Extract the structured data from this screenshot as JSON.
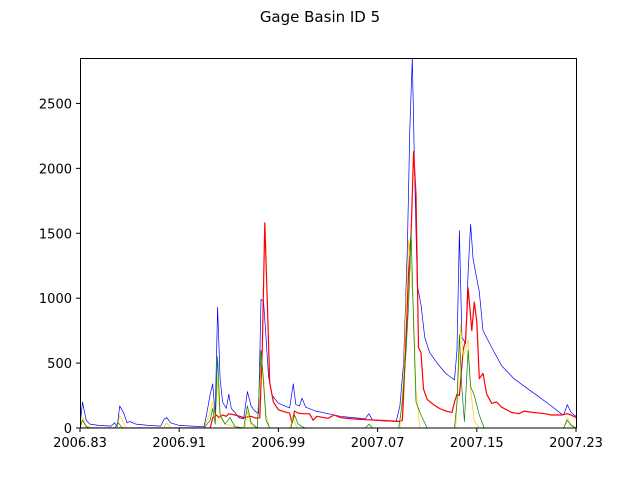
{
  "chart_data": {
    "type": "line",
    "title": "Gage Basin ID 5",
    "xlabel": "",
    "ylabel": "",
    "xlim": [
      2006.83,
      2007.23
    ],
    "ylim": [
      0,
      2850
    ],
    "xticks": [
      2006.83,
      2006.91,
      2006.99,
      2007.07,
      2007.15,
      2007.23
    ],
    "xtick_labels": [
      "2006.83",
      "2006.91",
      "2006.99",
      "2007.07",
      "2007.15",
      "2007.23"
    ],
    "yticks": [
      0,
      500,
      1000,
      1500,
      2000,
      2500
    ],
    "ytick_labels": [
      "0",
      "500",
      "1000",
      "1500",
      "2000",
      "2500"
    ],
    "grid": false,
    "legend": "none",
    "series": [
      {
        "color": "#0000ff",
        "width": 0.7,
        "points": [
          [
            2006.83,
            20
          ],
          [
            2006.832,
            200
          ],
          [
            2006.835,
            60
          ],
          [
            2006.838,
            30
          ],
          [
            2006.845,
            20
          ],
          [
            2006.855,
            15
          ],
          [
            2006.858,
            40
          ],
          [
            2006.86,
            10
          ],
          [
            2006.862,
            170
          ],
          [
            2006.865,
            120
          ],
          [
            2006.868,
            40
          ],
          [
            2006.87,
            50
          ],
          [
            2006.875,
            30
          ],
          [
            2006.885,
            20
          ],
          [
            2006.895,
            15
          ],
          [
            2006.898,
            70
          ],
          [
            2006.9,
            80
          ],
          [
            2006.903,
            40
          ],
          [
            2006.91,
            20
          ],
          [
            2006.92,
            15
          ],
          [
            2006.93,
            10
          ],
          [
            2006.932,
            100
          ],
          [
            2006.935,
            260
          ],
          [
            2006.937,
            340
          ],
          [
            2006.939,
            100
          ],
          [
            2006.941,
            930
          ],
          [
            2006.943,
            380
          ],
          [
            2006.945,
            200
          ],
          [
            2006.948,
            150
          ],
          [
            2006.95,
            260
          ],
          [
            2006.952,
            150
          ],
          [
            2006.955,
            120
          ],
          [
            2006.958,
            80
          ],
          [
            2006.962,
            70
          ],
          [
            2006.965,
            280
          ],
          [
            2006.968,
            170
          ],
          [
            2006.971,
            130
          ],
          [
            2006.974,
            110
          ],
          [
            2006.976,
            990
          ],
          [
            2006.978,
            980
          ],
          [
            2006.98,
            700
          ],
          [
            2006.982,
            400
          ],
          [
            2006.985,
            250
          ],
          [
            2006.99,
            190
          ],
          [
            2006.995,
            170
          ],
          [
            2006.999,
            155
          ],
          [
            2007.002,
            340
          ],
          [
            2007.004,
            180
          ],
          [
            2007.007,
            170
          ],
          [
            2007.009,
            230
          ],
          [
            2007.012,
            160
          ],
          [
            2007.02,
            130
          ],
          [
            2007.03,
            110
          ],
          [
            2007.04,
            90
          ],
          [
            2007.05,
            80
          ],
          [
            2007.06,
            70
          ],
          [
            2007.063,
            110
          ],
          [
            2007.066,
            60
          ],
          [
            2007.075,
            55
          ],
          [
            2007.085,
            50
          ],
          [
            2007.088,
            170
          ],
          [
            2007.091,
            500
          ],
          [
            2007.094,
            1400
          ],
          [
            2007.096,
            2300
          ],
          [
            2007.098,
            2850
          ],
          [
            2007.1,
            1900
          ],
          [
            2007.102,
            1100
          ],
          [
            2007.105,
            950
          ],
          [
            2007.108,
            700
          ],
          [
            2007.112,
            580
          ],
          [
            2007.118,
            500
          ],
          [
            2007.125,
            420
          ],
          [
            2007.132,
            370
          ],
          [
            2007.134,
            600
          ],
          [
            2007.136,
            1520
          ],
          [
            2007.138,
            700
          ],
          [
            2007.141,
            650
          ],
          [
            2007.143,
            1200
          ],
          [
            2007.145,
            1570
          ],
          [
            2007.147,
            1300
          ],
          [
            2007.15,
            1150
          ],
          [
            2007.152,
            1050
          ],
          [
            2007.155,
            750
          ],
          [
            2007.162,
            620
          ],
          [
            2007.17,
            480
          ],
          [
            2007.18,
            380
          ],
          [
            2007.19,
            310
          ],
          [
            2007.2,
            240
          ],
          [
            2007.21,
            170
          ],
          [
            2007.218,
            110
          ],
          [
            2007.22,
            100
          ],
          [
            2007.223,
            180
          ],
          [
            2007.226,
            120
          ],
          [
            2007.23,
            90
          ]
        ]
      },
      {
        "color": "#ff0000",
        "width": 1.2,
        "points": [
          [
            2006.83,
            0
          ],
          [
            2006.935,
            0
          ],
          [
            2006.937,
            80
          ],
          [
            2006.94,
            100
          ],
          [
            2006.942,
            80
          ],
          [
            2006.945,
            100
          ],
          [
            2006.948,
            90
          ],
          [
            2006.95,
            110
          ],
          [
            2006.955,
            100
          ],
          [
            2006.962,
            80
          ],
          [
            2006.968,
            90
          ],
          [
            2006.972,
            75
          ],
          [
            2006.975,
            80
          ],
          [
            2006.977,
            620
          ],
          [
            2006.979,
            1580
          ],
          [
            2006.981,
            1000
          ],
          [
            2006.983,
            350
          ],
          [
            2006.986,
            200
          ],
          [
            2006.99,
            140
          ],
          [
            2006.995,
            125
          ],
          [
            2006.999,
            115
          ],
          [
            2007.001,
            40
          ],
          [
            2007.003,
            130
          ],
          [
            2007.006,
            115
          ],
          [
            2007.01,
            110
          ],
          [
            2007.015,
            110
          ],
          [
            2007.018,
            60
          ],
          [
            2007.021,
            90
          ],
          [
            2007.03,
            75
          ],
          [
            2007.035,
            100
          ],
          [
            2007.04,
            80
          ],
          [
            2007.05,
            70
          ],
          [
            2007.06,
            65
          ],
          [
            2007.07,
            60
          ],
          [
            2007.08,
            55
          ],
          [
            2007.088,
            50
          ],
          [
            2007.09,
            60
          ],
          [
            2007.093,
            700
          ],
          [
            2007.095,
            1200
          ],
          [
            2007.097,
            1500
          ],
          [
            2007.099,
            2130
          ],
          [
            2007.101,
            1800
          ],
          [
            2007.103,
            620
          ],
          [
            2007.105,
            580
          ],
          [
            2007.107,
            300
          ],
          [
            2007.11,
            220
          ],
          [
            2007.115,
            180
          ],
          [
            2007.12,
            150
          ],
          [
            2007.125,
            130
          ],
          [
            2007.13,
            120
          ],
          [
            2007.132,
            200
          ],
          [
            2007.134,
            260
          ],
          [
            2007.136,
            250
          ],
          [
            2007.139,
            600
          ],
          [
            2007.141,
            680
          ],
          [
            2007.143,
            1080
          ],
          [
            2007.146,
            750
          ],
          [
            2007.148,
            970
          ],
          [
            2007.15,
            820
          ],
          [
            2007.152,
            380
          ],
          [
            2007.155,
            420
          ],
          [
            2007.158,
            260
          ],
          [
            2007.162,
            190
          ],
          [
            2007.166,
            200
          ],
          [
            2007.17,
            160
          ],
          [
            2007.178,
            120
          ],
          [
            2007.184,
            110
          ],
          [
            2007.188,
            130
          ],
          [
            2007.195,
            120
          ],
          [
            2007.205,
            110
          ],
          [
            2007.21,
            100
          ],
          [
            2007.218,
            100
          ],
          [
            2007.223,
            110
          ],
          [
            2007.226,
            100
          ],
          [
            2007.23,
            80
          ]
        ]
      },
      {
        "color": "#ffcc00",
        "width": 0.7,
        "points": [
          [
            2006.83,
            0
          ],
          [
            2006.832,
            80
          ],
          [
            2006.835,
            20
          ],
          [
            2006.84,
            0
          ],
          [
            2006.86,
            0
          ],
          [
            2006.862,
            100
          ],
          [
            2006.864,
            60
          ],
          [
            2006.867,
            0
          ],
          [
            2006.897,
            0
          ],
          [
            2006.9,
            40
          ],
          [
            2006.903,
            0
          ],
          [
            2006.93,
            0
          ],
          [
            2006.935,
            120
          ],
          [
            2006.937,
            200
          ],
          [
            2006.939,
            60
          ],
          [
            2006.941,
            370
          ],
          [
            2006.943,
            80
          ],
          [
            2006.947,
            30
          ],
          [
            2006.955,
            10
          ],
          [
            2006.963,
            0
          ],
          [
            2006.965,
            130
          ],
          [
            2006.968,
            20
          ],
          [
            2006.973,
            0
          ],
          [
            2006.976,
            550
          ],
          [
            2006.978,
            400
          ],
          [
            2006.98,
            100
          ],
          [
            2006.983,
            0
          ],
          [
            2006.999,
            0
          ],
          [
            2007.002,
            80
          ],
          [
            2007.005,
            0
          ],
          [
            2007.088,
            0
          ],
          [
            2007.091,
            400
          ],
          [
            2007.093,
            1000
          ],
          [
            2007.095,
            1450
          ],
          [
            2007.097,
            1200
          ],
          [
            2007.099,
            900
          ],
          [
            2007.101,
            300
          ],
          [
            2007.104,
            0
          ],
          [
            2007.133,
            0
          ],
          [
            2007.135,
            350
          ],
          [
            2007.137,
            800
          ],
          [
            2007.139,
            550
          ],
          [
            2007.141,
            600
          ],
          [
            2007.143,
            680
          ],
          [
            2007.145,
            300
          ],
          [
            2007.148,
            50
          ],
          [
            2007.152,
            0
          ],
          [
            2007.22,
            0
          ],
          [
            2007.223,
            80
          ],
          [
            2007.226,
            30
          ],
          [
            2007.23,
            0
          ]
        ]
      },
      {
        "color": "#008000",
        "width": 0.7,
        "points": [
          [
            2006.83,
            0
          ],
          [
            2006.832,
            60
          ],
          [
            2006.835,
            10
          ],
          [
            2006.838,
            0
          ],
          [
            2006.858,
            0
          ],
          [
            2006.861,
            40
          ],
          [
            2006.864,
            0
          ],
          [
            2006.93,
            0
          ],
          [
            2006.935,
            60
          ],
          [
            2006.937,
            150
          ],
          [
            2006.939,
            30
          ],
          [
            2006.941,
            550
          ],
          [
            2006.943,
            100
          ],
          [
            2006.947,
            30
          ],
          [
            2006.951,
            80
          ],
          [
            2006.955,
            10
          ],
          [
            2006.962,
            0
          ],
          [
            2006.965,
            170
          ],
          [
            2006.968,
            40
          ],
          [
            2006.973,
            0
          ],
          [
            2006.976,
            600
          ],
          [
            2006.978,
            350
          ],
          [
            2006.98,
            60
          ],
          [
            2006.983,
            0
          ],
          [
            2007.0,
            0
          ],
          [
            2007.003,
            100
          ],
          [
            2007.006,
            30
          ],
          [
            2007.009,
            10
          ],
          [
            2007.012,
            0
          ],
          [
            2007.06,
            0
          ],
          [
            2007.063,
            30
          ],
          [
            2007.066,
            0
          ],
          [
            2007.087,
            0
          ],
          [
            2007.09,
            200
          ],
          [
            2007.093,
            600
          ],
          [
            2007.095,
            950
          ],
          [
            2007.097,
            1500
          ],
          [
            2007.099,
            800
          ],
          [
            2007.101,
            200
          ],
          [
            2007.105,
            100
          ],
          [
            2007.11,
            0
          ],
          [
            2007.132,
            0
          ],
          [
            2007.134,
            200
          ],
          [
            2007.136,
            720
          ],
          [
            2007.138,
            300
          ],
          [
            2007.14,
            50
          ],
          [
            2007.143,
            600
          ],
          [
            2007.145,
            320
          ],
          [
            2007.148,
            250
          ],
          [
            2007.152,
            100
          ],
          [
            2007.156,
            0
          ],
          [
            2007.22,
            0
          ],
          [
            2007.223,
            60
          ],
          [
            2007.226,
            20
          ],
          [
            2007.23,
            0
          ]
        ]
      }
    ]
  }
}
